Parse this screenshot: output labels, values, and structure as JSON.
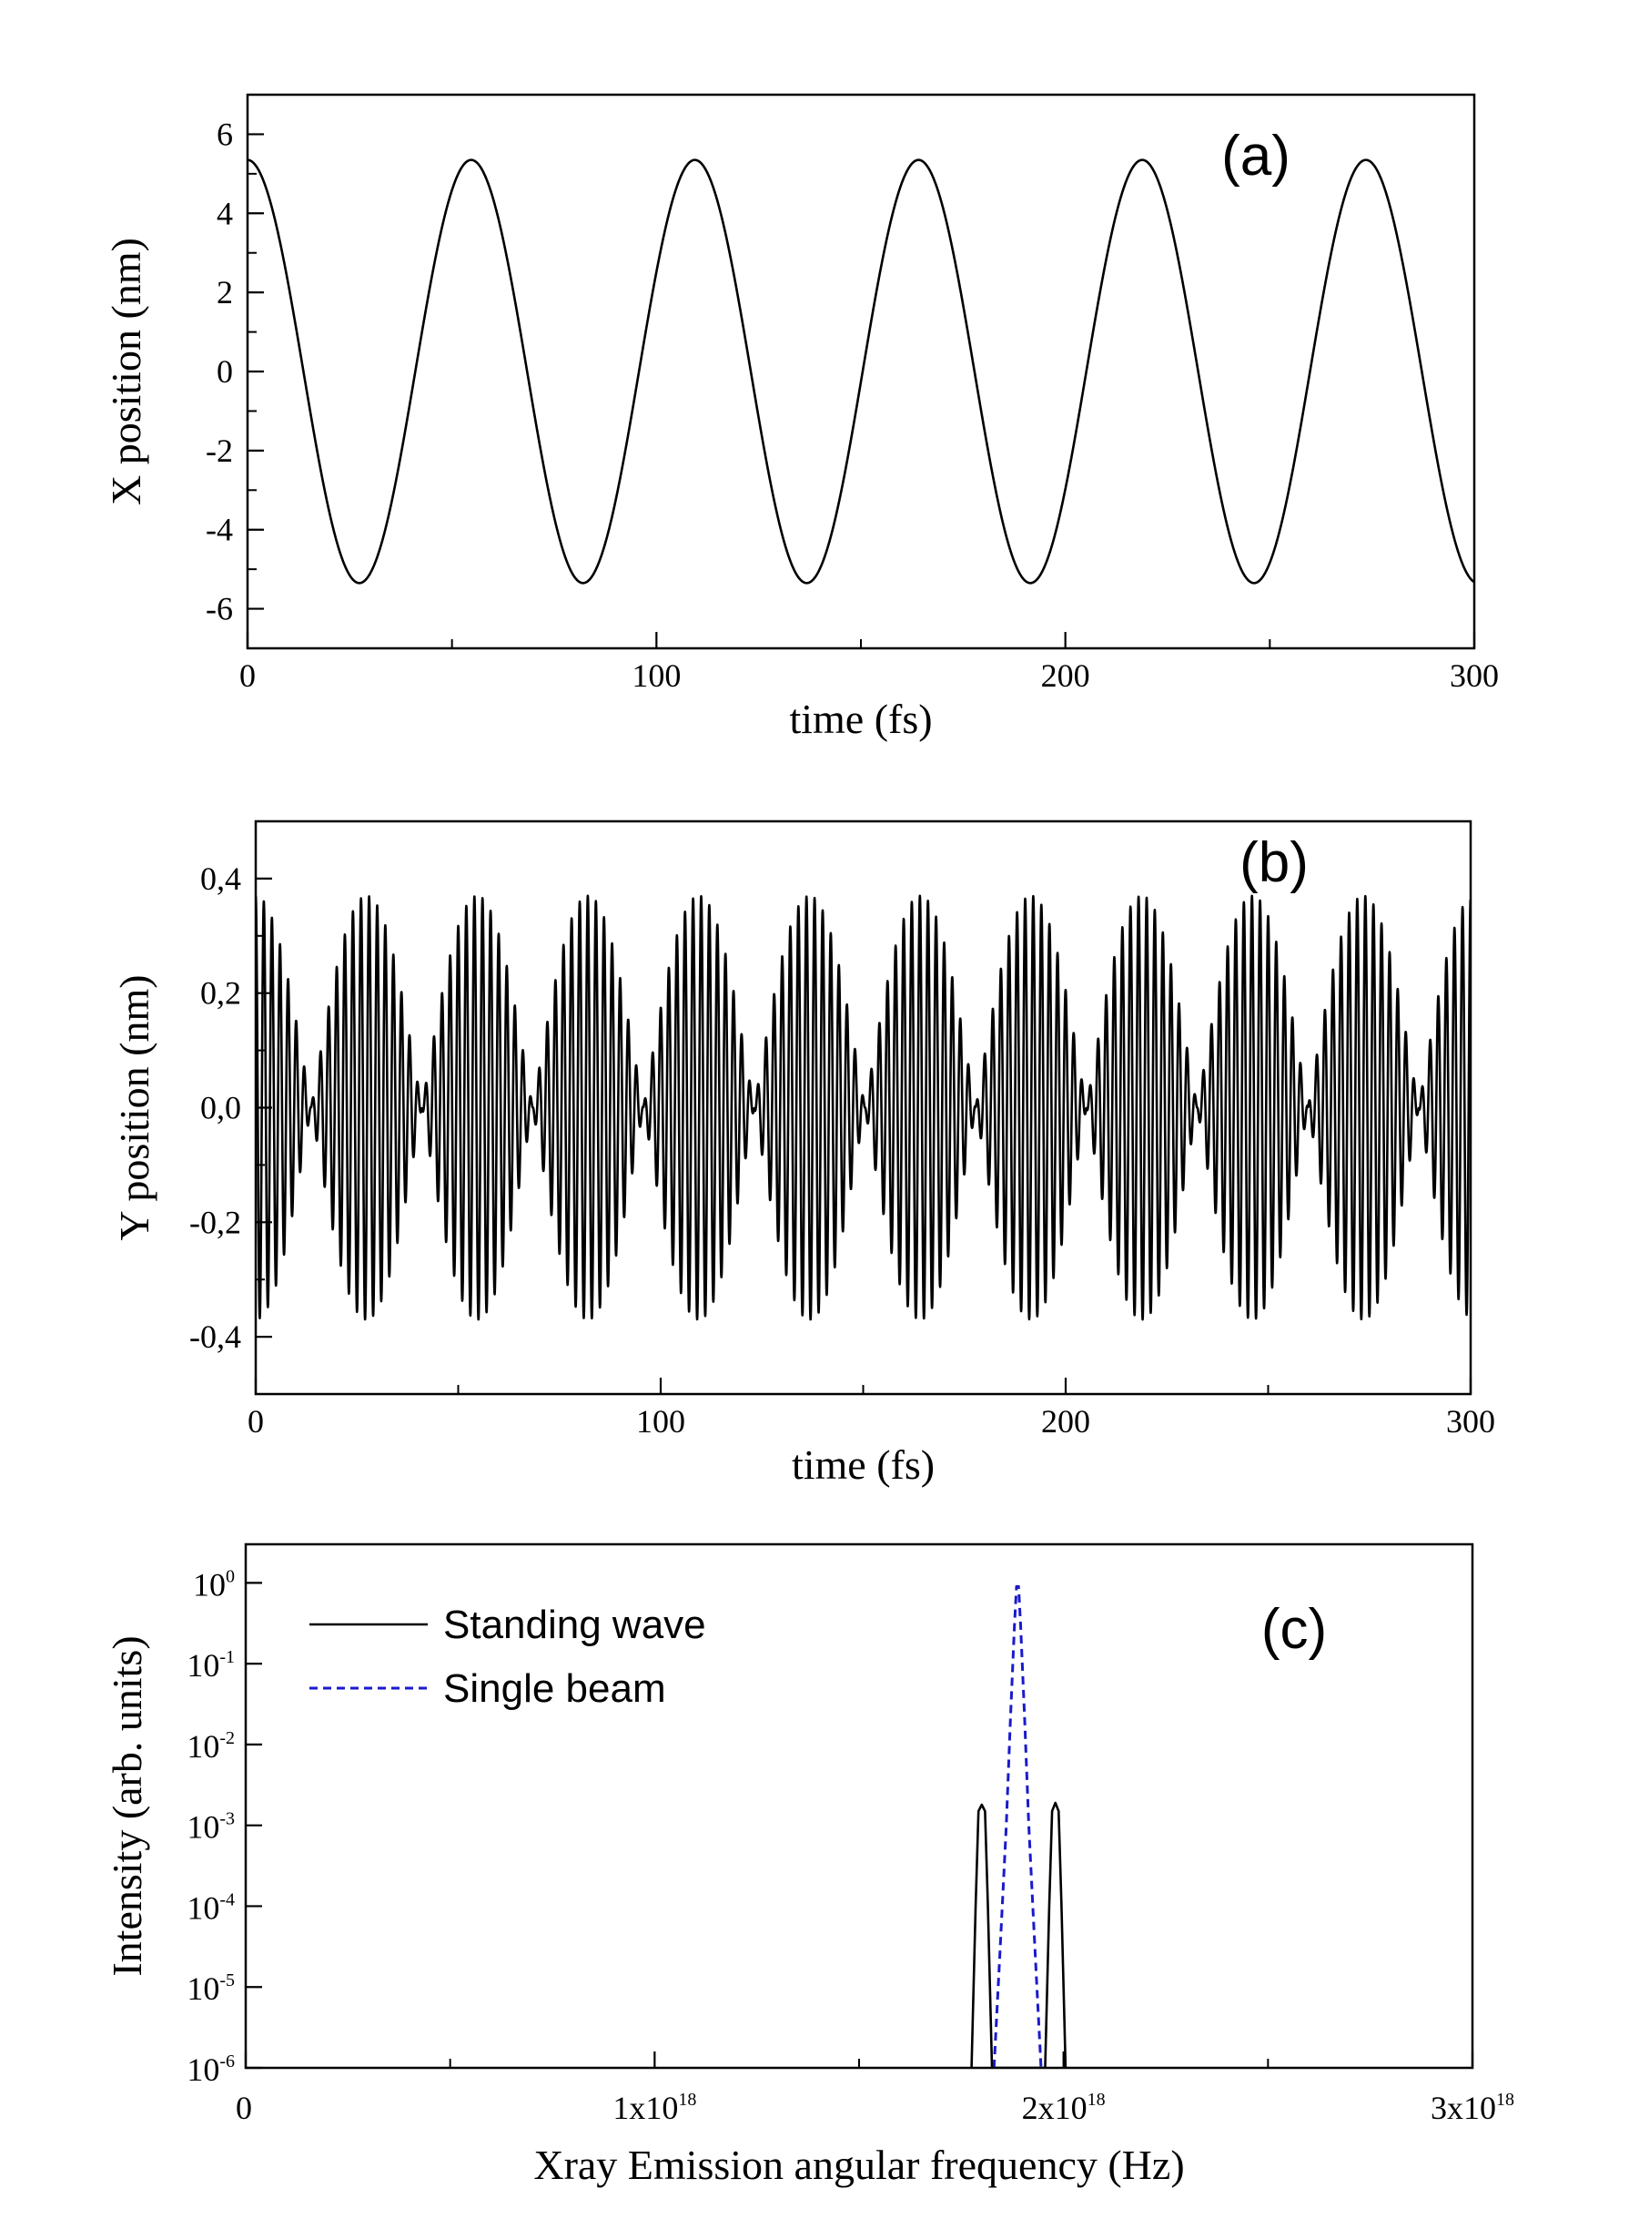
{
  "chart_data": [
    {
      "type": "line",
      "panel_label": "(a)",
      "xlabel": "time (fs)",
      "ylabel": "X position (nm)",
      "xlim": [
        0,
        300
      ],
      "ylim": [
        -7,
        7
      ],
      "xticks": [
        0,
        100,
        200,
        300
      ],
      "xtick_labels": [
        "0",
        "100",
        "200",
        "300"
      ],
      "yticks": [
        -6,
        -4,
        -2,
        0,
        2,
        4,
        6
      ],
      "ytick_labels": [
        "-6",
        "-4",
        "-2",
        "0",
        "2",
        "4",
        "6"
      ],
      "series": [
        {
          "name": "X position",
          "color": "#000000",
          "style": "solid",
          "function": "cosine",
          "amplitude": 5.35,
          "period_fs": 54.7,
          "x_range": [
            0,
            300
          ]
        }
      ]
    },
    {
      "type": "line",
      "panel_label": "(b)",
      "xlabel": "time (fs)",
      "ylabel": "Y position (nm)",
      "xlim": [
        0,
        300
      ],
      "ylim": [
        -0.5,
        0.5
      ],
      "xticks": [
        0,
        100,
        200,
        300
      ],
      "xtick_labels": [
        "0",
        "100",
        "200",
        "300"
      ],
      "yticks": [
        -0.4,
        -0.2,
        0.0,
        0.2,
        0.4
      ],
      "ytick_labels": [
        "-0,4",
        "-0,2",
        "0,0",
        "0,2",
        "0,4"
      ],
      "series": [
        {
          "name": "Y position",
          "color": "#000000",
          "style": "solid",
          "function": "beating",
          "amplitude": 0.37,
          "envelope_period_fs": 27.35,
          "carrier_period_fs": 2.0,
          "x_range": [
            0,
            300
          ]
        }
      ]
    },
    {
      "type": "line",
      "panel_label": "(c)",
      "xlabel": "Xray Emission angular frequency (Hz)",
      "ylabel": "Intensity (arb. units)",
      "xscale": "linear",
      "yscale": "log",
      "xlim": [
        0,
        3e+18
      ],
      "ylim": [
        1e-06,
        3
      ],
      "xticks": [
        0,
        1e+18,
        2e+18,
        3e+18
      ],
      "xtick_labels": [
        {
          "base": "0",
          "exp": ""
        },
        {
          "base": "1x10",
          "exp": "18"
        },
        {
          "base": "2x10",
          "exp": "18"
        },
        {
          "base": "3x10",
          "exp": "18"
        }
      ],
      "yticks": [
        1e-06,
        1e-05,
        0.0001,
        0.001,
        0.01,
        0.1,
        1
      ],
      "ytick_labels": [
        {
          "base": "10",
          "exp": "-6"
        },
        {
          "base": "10",
          "exp": "-5"
        },
        {
          "base": "10",
          "exp": "-4"
        },
        {
          "base": "10",
          "exp": "-3"
        },
        {
          "base": "10",
          "exp": "-2"
        },
        {
          "base": "10",
          "exp": "-1"
        },
        {
          "base": "10",
          "exp": "0"
        }
      ],
      "legend_position": "top-left",
      "series": [
        {
          "name": "Standing wave",
          "color": "#000000",
          "style": "solid",
          "x": [
            1.775e+18,
            1.785e+18,
            1.792e+18,
            1.8e+18,
            1.808e+18,
            1.815e+18,
            1.825e+18,
            1.955e+18,
            1.965e+18,
            1.972e+18,
            1.98e+18,
            1.988e+18,
            1.995e+18,
            2.005e+18
          ],
          "y": [
            1e-06,
            0.0001,
            0.0015,
            0.0018,
            0.0015,
            0.0001,
            1e-06,
            1e-06,
            0.0001,
            0.0015,
            0.0019,
            0.0015,
            0.0001,
            1e-06
          ]
        },
        {
          "name": "Single beam",
          "color": "#1a1acc",
          "style": "dashed",
          "x": [
            1.83e+18,
            1.845e+18,
            1.86e+18,
            1.87e+18,
            1.88e+18,
            1.885e+18,
            1.89e+18,
            1.895e+18,
            1.905e+18,
            1.915e+18,
            1.93e+18,
            1.945e+18
          ],
          "y": [
            1e-06,
            3e-05,
            0.001,
            0.02,
            0.3,
            0.9,
            0.9,
            0.3,
            0.02,
            0.001,
            3e-05,
            1e-06
          ]
        }
      ]
    }
  ]
}
